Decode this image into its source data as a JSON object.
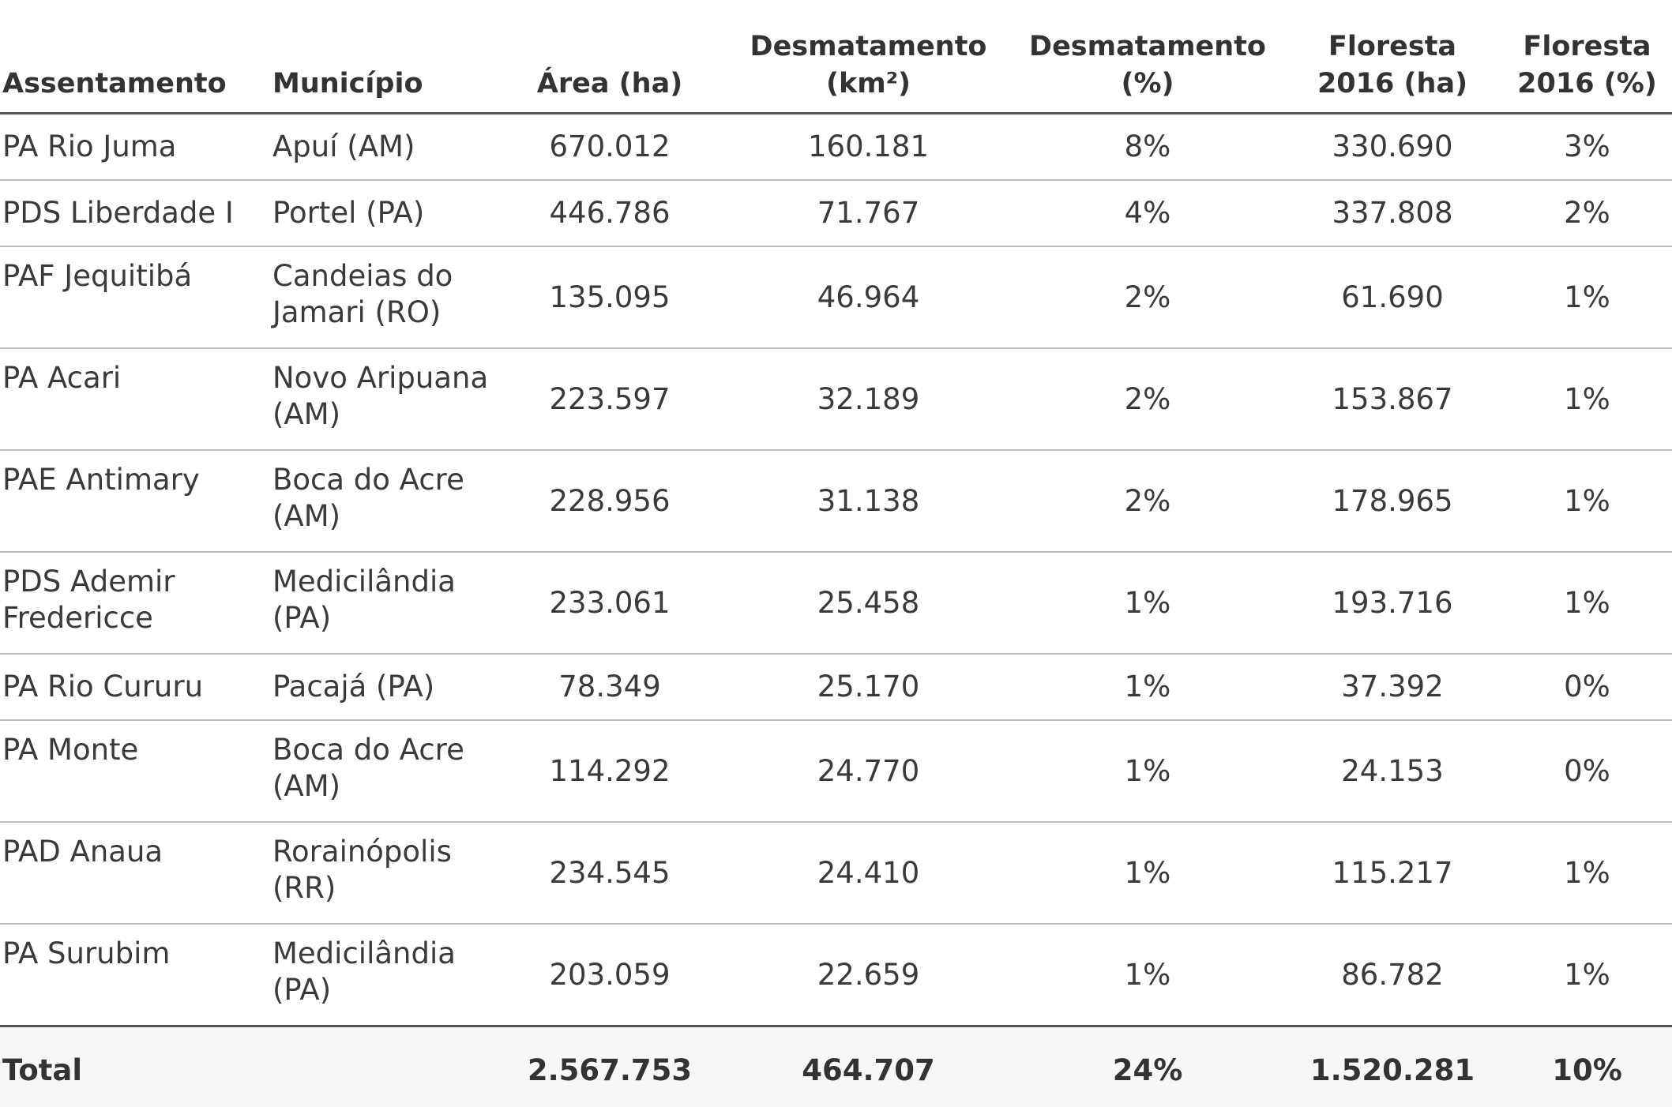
{
  "headers": {
    "assentamento": "Assentamento",
    "municipio": "Município",
    "area": "Área (ha)",
    "desmatamento_km2_line1": "Desmatamento",
    "desmatamento_km2_line2": "(km²)",
    "desmatamento_pct_line1": "Desmatamento",
    "desmatamento_pct_line2": "(%)",
    "floresta_ha_line1": "Floresta",
    "floresta_ha_line2": "2016 (ha)",
    "floresta_pct_line1": "Floresta",
    "floresta_pct_line2": "2016 (%)"
  },
  "rows": [
    {
      "assentamento": "PA Rio Juma",
      "municipio": "Apuí (AM)",
      "area": "670.012",
      "desmatamento_km2": "160.181",
      "desmatamento_pct": "8%",
      "floresta_ha": "330.690",
      "floresta_pct": "3%"
    },
    {
      "assentamento": "PDS Liberdade I",
      "municipio": "Portel (PA)",
      "area": "446.786",
      "desmatamento_km2": "71.767",
      "desmatamento_pct": "4%",
      "floresta_ha": "337.808",
      "floresta_pct": "2%"
    },
    {
      "assentamento": "PAF Jequitibá",
      "municipio": "Candeias do Jamari (RO)",
      "area": "135.095",
      "desmatamento_km2": "46.964",
      "desmatamento_pct": "2%",
      "floresta_ha": "61.690",
      "floresta_pct": "1%"
    },
    {
      "assentamento": "PA Acari",
      "municipio": "Novo Aripuana (AM)",
      "area": "223.597",
      "desmatamento_km2": "32.189",
      "desmatamento_pct": "2%",
      "floresta_ha": "153.867",
      "floresta_pct": "1%"
    },
    {
      "assentamento": "PAE Antimary",
      "municipio": "Boca do Acre (AM)",
      "area": "228.956",
      "desmatamento_km2": "31.138",
      "desmatamento_pct": "2%",
      "floresta_ha": "178.965",
      "floresta_pct": "1%"
    },
    {
      "assentamento": "PDS Ademir Fredericce",
      "municipio": "Medicilândia (PA)",
      "area": "233.061",
      "desmatamento_km2": "25.458",
      "desmatamento_pct": "1%",
      "floresta_ha": "193.716",
      "floresta_pct": "1%"
    },
    {
      "assentamento": "PA Rio Cururu",
      "municipio": "Pacajá (PA)",
      "area": "78.349",
      "desmatamento_km2": "25.170",
      "desmatamento_pct": "1%",
      "floresta_ha": "37.392",
      "floresta_pct": "0%"
    },
    {
      "assentamento": "PA Monte",
      "municipio": "Boca do Acre (AM)",
      "area": "114.292",
      "desmatamento_km2": "24.770",
      "desmatamento_pct": "1%",
      "floresta_ha": "24.153",
      "floresta_pct": "0%"
    },
    {
      "assentamento": "PAD Anaua",
      "municipio": "Rorainópolis (RR)",
      "area": "234.545",
      "desmatamento_km2": "24.410",
      "desmatamento_pct": "1%",
      "floresta_ha": "115.217",
      "floresta_pct": "1%"
    },
    {
      "assentamento": "PA Surubim",
      "municipio": "Medicilândia (PA)",
      "area": "203.059",
      "desmatamento_km2": "22.659",
      "desmatamento_pct": "1%",
      "floresta_ha": "86.782",
      "floresta_pct": "1%"
    }
  ],
  "total": {
    "label": "Total",
    "area": "2.567.753",
    "desmatamento_km2": "464.707",
    "desmatamento_pct": "24%",
    "floresta_ha": "1.520.281",
    "floresta_pct": "10%"
  }
}
